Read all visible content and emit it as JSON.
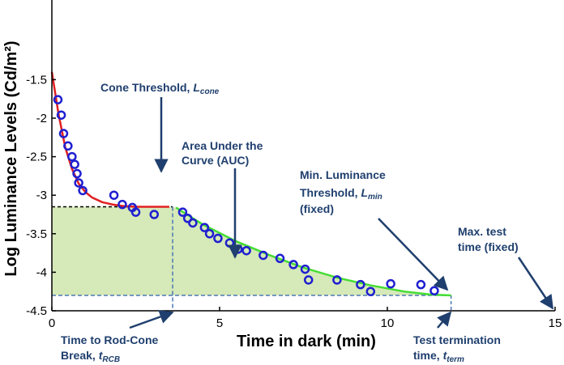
{
  "chart_data": {
    "type": "line",
    "xlabel": "Time in dark (min)",
    "ylabel": "Log Luminance Levels (Cd/m²)",
    "xlim": [
      0,
      15
    ],
    "ylim": [
      -4.5,
      -1.4
    ],
    "x_ticks": [
      "0",
      "5",
      "10",
      "15"
    ],
    "y_ticks": [
      "-1.5",
      "-2",
      "-2.5",
      "-3",
      "-3.5",
      "-4",
      "-4.5"
    ],
    "grid": false,
    "series": [
      {
        "style": "scatter-circles",
        "color": "#1f1fd0",
        "points": [
          [
            0.18,
            -1.76
          ],
          [
            0.28,
            -1.96
          ],
          [
            0.35,
            -2.2
          ],
          [
            0.48,
            -2.36
          ],
          [
            0.6,
            -2.5
          ],
          [
            0.68,
            -2.6
          ],
          [
            0.75,
            -2.72
          ],
          [
            0.8,
            -2.84
          ],
          [
            0.92,
            -2.94
          ],
          [
            1.85,
            -3.0
          ],
          [
            2.1,
            -3.12
          ],
          [
            2.4,
            -3.16
          ],
          [
            2.5,
            -3.22
          ],
          [
            3.05,
            -3.25
          ],
          [
            3.9,
            -3.22
          ],
          [
            4.05,
            -3.3
          ],
          [
            4.2,
            -3.36
          ],
          [
            4.55,
            -3.42
          ],
          [
            4.7,
            -3.5
          ],
          [
            4.95,
            -3.56
          ],
          [
            5.3,
            -3.62
          ],
          [
            5.55,
            -3.7
          ],
          [
            5.8,
            -3.72
          ],
          [
            6.3,
            -3.78
          ],
          [
            6.8,
            -3.82
          ],
          [
            7.2,
            -3.9
          ],
          [
            7.55,
            -3.96
          ],
          [
            7.65,
            -4.1
          ],
          [
            8.5,
            -4.1
          ],
          [
            9.2,
            -4.16
          ],
          [
            9.5,
            -4.25
          ],
          [
            10.1,
            -4.15
          ],
          [
            11.0,
            -4.16
          ],
          [
            11.4,
            -4.24
          ]
        ]
      },
      {
        "style": "cone-fit-line",
        "color": "#e02020",
        "x": [
          0.0,
          0.2,
          0.4,
          0.6,
          0.8,
          1.0,
          1.2,
          1.5,
          1.8,
          2.1,
          2.5,
          3.0,
          3.5
        ],
        "values": [
          -1.4,
          -1.95,
          -2.38,
          -2.66,
          -2.85,
          -2.96,
          -3.03,
          -3.09,
          -3.12,
          -3.14,
          -3.15,
          -3.15,
          -3.15
        ]
      },
      {
        "style": "rod-fit-line",
        "color": "#44dd33",
        "x": [
          3.7,
          4.5,
          5.5,
          6.5,
          7.5,
          8.5,
          9.5,
          10.5,
          11.3,
          11.9
        ],
        "values": [
          -3.16,
          -3.38,
          -3.6,
          -3.78,
          -3.94,
          -4.07,
          -4.17,
          -4.25,
          -4.29,
          -4.3
        ]
      }
    ],
    "reference_lines": {
      "cone_threshold_y": -3.15,
      "min_luminance_y": -4.3,
      "rod_cone_break_x": 3.6,
      "test_termination_x": 11.9,
      "max_test_time_x": 15.0
    },
    "colors": {
      "area_fill": "#d6e9b8",
      "annotation": "#1f3f6e",
      "guide": "#4a78b6"
    },
    "annotations": {
      "cone_threshold": {
        "text": "Cone Threshold, ",
        "var": "L",
        "sub": "cone"
      },
      "auc_line1": "Area Under the",
      "auc_line2": "Curve (AUC)",
      "min_lum_line1": "Min. Luminance",
      "min_lum_line2": "Threshold, ",
      "min_lum_var": "L",
      "min_lum_sub": "min",
      "min_lum_line3": "(fixed)",
      "max_time_line1": "Max. test",
      "max_time_line2": "time (fixed)",
      "rcb_line1": "Time to Rod-Cone",
      "rcb_line2": "Break, ",
      "rcb_var": "t",
      "rcb_sub": "RCB",
      "term_line1": "Test termination",
      "term_line2": "time, ",
      "term_var": "t",
      "term_sub": "term"
    }
  }
}
